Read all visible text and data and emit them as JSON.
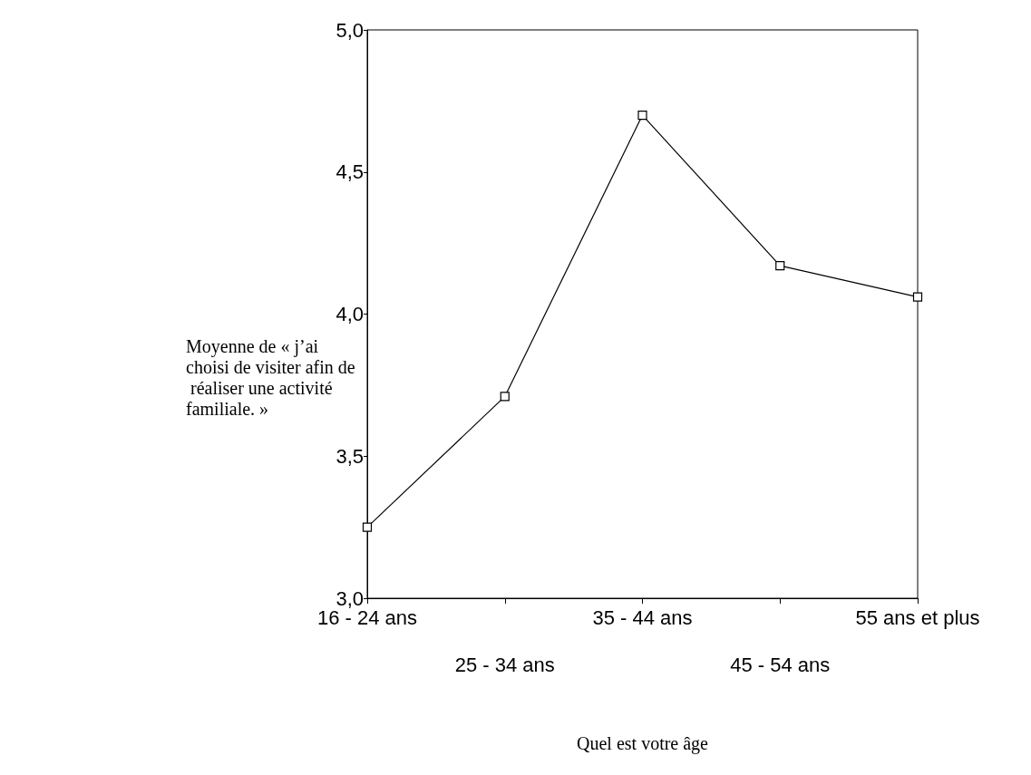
{
  "chart_data": {
    "type": "line",
    "ylabel": "Moyenne de « j’ai choisi de visiter afin de réaliser une activité familiale. »",
    "xlabel": "Quel est votre âge",
    "categories": [
      "16 - 24 ans",
      "25 - 34 ans",
      "35 - 44 ans",
      "45 - 54 ans",
      "55 ans et plus"
    ],
    "series": [
      {
        "color": "#000000",
        "values": [
          3.25,
          3.71,
          4.7,
          4.17,
          4.06
        ]
      }
    ],
    "ylim": [
      3,
      5
    ],
    "yticks": [
      {
        "value": 3,
        "label": "3,0"
      },
      {
        "value": 3.5,
        "label": "3,5"
      },
      {
        "value": 4,
        "label": "4,0"
      },
      {
        "value": 4.5,
        "label": "4,5"
      },
      {
        "value": 5,
        "label": "5,0"
      }
    ],
    "marker": "square",
    "line_style": "solid",
    "grid": false
  }
}
